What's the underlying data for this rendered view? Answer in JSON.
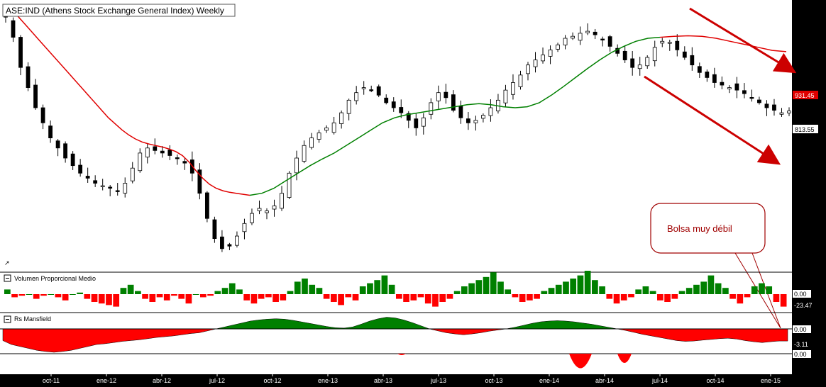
{
  "title": "ASE:IND (Athens Stock Exchange General Index) Weekly",
  "annotation": "Bolsa muy débil",
  "price_labels": {
    "red_ma": "931.45",
    "last": "813.55"
  },
  "panels": {
    "volume": {
      "title": "Volumen Proporcional Medio",
      "labels": [
        "0.00",
        "-23.47"
      ]
    },
    "mansfield": {
      "title": "Rs Mansfield",
      "labels": [
        "0.00",
        "-3.11",
        "0.00"
      ]
    }
  },
  "colors": {
    "up_bar": "#008000",
    "down_bar": "#ff0000",
    "ma_red": "#e00000",
    "ma_green": "#008000",
    "arrow": "#cc0000",
    "sidebar": "#000000"
  },
  "chart_data": {
    "type": "candlestick",
    "x_ticks": [
      "oct-11",
      "ene-12",
      "abr-12",
      "jul-12",
      "oct-12",
      "ene-13",
      "abr-13",
      "jul-13",
      "oct-13",
      "ene-14",
      "abr-14",
      "jul-14",
      "oct-14",
      "ene-15"
    ],
    "price_close_series": [
      1000,
      960,
      900,
      860,
      820,
      790,
      760,
      740,
      720,
      705,
      690,
      680,
      670,
      665,
      660,
      655,
      670,
      700,
      730,
      740,
      735,
      730,
      725,
      720,
      710,
      690,
      650,
      600,
      560,
      540,
      545,
      565,
      590,
      610,
      620,
      615,
      625,
      650,
      690,
      720,
      745,
      760,
      770,
      780,
      790,
      810,
      835,
      850,
      860,
      855,
      845,
      830,
      820,
      810,
      795,
      780,
      800,
      830,
      850,
      840,
      815,
      800,
      790,
      795,
      805,
      820,
      835,
      855,
      870,
      885,
      905,
      915,
      925,
      935,
      945,
      958,
      962,
      968,
      972,
      965,
      955,
      942,
      928,
      915,
      900,
      905,
      920,
      940,
      952,
      950,
      935,
      920,
      905,
      890,
      880,
      870,
      865,
      860,
      855,
      848,
      840,
      830,
      820,
      815,
      810,
      813.55
    ],
    "red_ma_series": [
      1010,
      995,
      980,
      965,
      950,
      935,
      920,
      905,
      890,
      875,
      860,
      845,
      830,
      815,
      800,
      788,
      776,
      766,
      758,
      752,
      748,
      745,
      742,
      738,
      733,
      725,
      712,
      695,
      680,
      668,
      660,
      655,
      652,
      650,
      648,
      646
    ],
    "green_ma_series": [
      646,
      650,
      660,
      675,
      690,
      705,
      718,
      730,
      745,
      760,
      775,
      790,
      800,
      806,
      810,
      814,
      818,
      822,
      826,
      828,
      826,
      822,
      820,
      822,
      830,
      845,
      862,
      880,
      898,
      915,
      930,
      942,
      952,
      958,
      960
    ],
    "red_ma_tail_series": [
      960,
      962,
      963,
      962,
      958,
      952,
      946,
      940,
      934,
      931.45
    ],
    "volume_series": [
      3,
      -2,
      -1,
      0,
      -3,
      -1,
      0,
      -2,
      -4,
      0,
      1,
      -3,
      -5,
      -6,
      -7,
      -8,
      4,
      6,
      2,
      -3,
      -5,
      -2,
      -4,
      -1,
      -3,
      -6,
      0,
      -2,
      -1,
      2,
      4,
      7,
      3,
      -4,
      -6,
      -3,
      -2,
      -5,
      -4,
      2,
      8,
      10,
      6,
      4,
      -3,
      -5,
      -7,
      -2,
      -4,
      5,
      7,
      9,
      12,
      6,
      -3,
      -5,
      -4,
      -2,
      -6,
      -8,
      -5,
      -3,
      2,
      5,
      7,
      9,
      11,
      14,
      8,
      3,
      -2,
      -5,
      -4,
      -3,
      2,
      4,
      6,
      8,
      10,
      12,
      15,
      9,
      5,
      -3,
      -6,
      -4,
      -2,
      3,
      5,
      2,
      -4,
      -5,
      -3,
      2,
      4,
      6,
      8,
      12,
      7,
      4,
      -3,
      -6,
      -2,
      5,
      7,
      5,
      -5,
      -8
    ],
    "mansfield_series": [
      -3,
      -4,
      -4.5,
      -5,
      -5.5,
      -5.8,
      -6,
      -5.8,
      -5.5,
      -5,
      -4.5,
      -4,
      -3.8,
      -3.5,
      -3.2,
      -3,
      -2.8,
      -2.5,
      -2.2,
      -2,
      -1.8,
      -1.5,
      -1.2,
      -1,
      -0.5,
      0,
      0.5,
      1,
      1.5,
      2,
      2.3,
      2.5,
      2.6,
      2.5,
      2.2,
      1.8,
      1.4,
      1,
      0.6,
      0.3,
      0.2,
      0.5,
      1.2,
      2,
      2.6,
      3,
      2.8,
      2.3,
      1.6,
      0.8,
      0,
      -0.5,
      -1,
      -1.3,
      -1.5,
      -1.3,
      -1,
      -0.6,
      -0.3,
      0,
      0.4,
      0.9,
      1.4,
      1.8,
      2,
      2.1,
      2,
      1.8,
      1.5,
      1.2,
      0.8,
      0.4,
      0,
      -0.4,
      -0.9,
      -1.4,
      -1.8,
      -2.2,
      -2.6,
      -3,
      -3.2,
      -3.1,
      -2.9,
      -2.7,
      -2.5,
      -2.4,
      -2.6,
      -3,
      -3.3,
      -3.5,
      -3.3,
      -3.1,
      -3.11
    ],
    "mansfield_low_dips": [
      {
        "at": "abr-14",
        "depth": "large"
      },
      {
        "at": "abr-14",
        "depth": "medium"
      }
    ]
  }
}
